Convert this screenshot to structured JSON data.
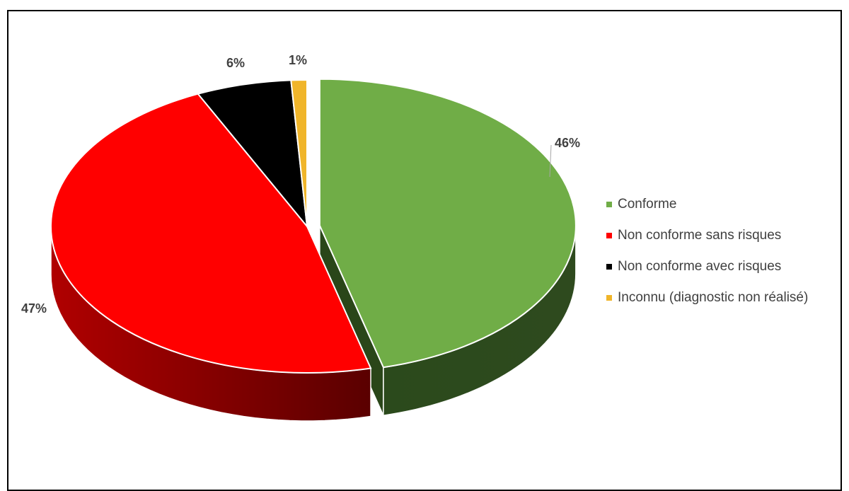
{
  "chart_data": {
    "type": "pie",
    "style": "3d-exploded",
    "title": "",
    "legend_position": "right",
    "slices": [
      {
        "label": "Conforme",
        "value": 46,
        "display": "46%",
        "color": "#70AD47",
        "side_color": "#2E4A1E",
        "exploded": true
      },
      {
        "label": "Non conforme sans risques",
        "value": 47,
        "display": "47%",
        "color": "#FF0000",
        "side_color": "#8B0000",
        "exploded": false
      },
      {
        "label": "Non conforme avec risques",
        "value": 6,
        "display": "6%",
        "color": "#000000",
        "side_color": "#111111",
        "exploded": false
      },
      {
        "label": "Inconnu (diagnostic non réalisé)",
        "value": 1,
        "display": "1%",
        "color": "#F0B52A",
        "side_color": "#9A7210",
        "exploded": false
      }
    ]
  }
}
